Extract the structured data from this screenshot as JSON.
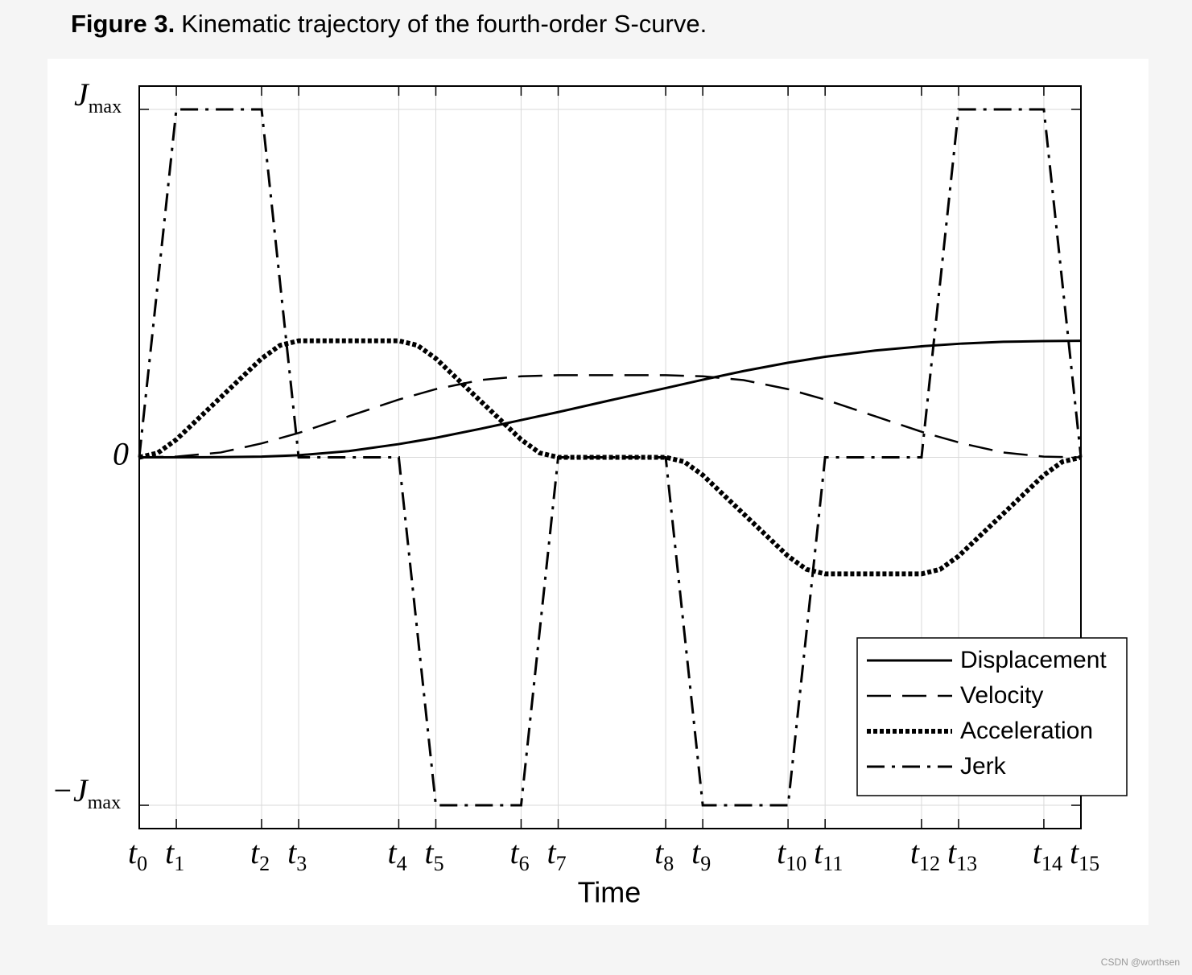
{
  "caption": {
    "label": "Figure 3.",
    "text": "Kinematic trajectory of the fourth-order S-curve."
  },
  "watermark": "CSDN @worthsen",
  "chart_data": {
    "type": "line",
    "xlabel": "Time",
    "grid": true,
    "legend": "lower right",
    "xlim": [
      0,
      25.4
    ],
    "ylim": [
      -1.067,
      1.067
    ],
    "xticks": [
      {
        "value": 0,
        "label": "t0"
      },
      {
        "value": 1,
        "label": "t1"
      },
      {
        "value": 3.3,
        "label": "t2"
      },
      {
        "value": 4.3,
        "label": "t3"
      },
      {
        "value": 7,
        "label": "t4"
      },
      {
        "value": 8,
        "label": "t5"
      },
      {
        "value": 10.3,
        "label": "t6"
      },
      {
        "value": 11.3,
        "label": "t7"
      },
      {
        "value": 14.2,
        "label": "t8"
      },
      {
        "value": 15.2,
        "label": "t9"
      },
      {
        "value": 17.5,
        "label": "t10"
      },
      {
        "value": 18.5,
        "label": "t11"
      },
      {
        "value": 21.1,
        "label": "t12"
      },
      {
        "value": 22.1,
        "label": "t13"
      },
      {
        "value": 24.4,
        "label": "t14"
      },
      {
        "value": 25.4,
        "label": "t15"
      }
    ],
    "yticks": [
      {
        "value": 1,
        "label": "Jmax"
      },
      0,
      {
        "value": -1,
        "label": "−Jmax"
      }
    ],
    "series": [
      {
        "name": "Displacement",
        "color": "#000000",
        "dash": "solid",
        "x": [
          0,
          2.2,
          3.3,
          4.3,
          5.65,
          7,
          8,
          9.2,
          10.3,
          11.3,
          12.75,
          14.2,
          15.2,
          16.3,
          17.5,
          18.5,
          19.85,
          21.2,
          22.2,
          23.3,
          24.4,
          25.4
        ],
        "values": [
          0,
          0.0005,
          0.002,
          0.006,
          0.018,
          0.038,
          0.056,
          0.082,
          0.107,
          0.13,
          0.165,
          0.199,
          0.223,
          0.248,
          0.272,
          0.289,
          0.307,
          0.32,
          0.327,
          0.332,
          0.334,
          0.335
        ]
      },
      {
        "name": "Velocity",
        "color": "#000000",
        "dash": "dashed",
        "x": [
          0,
          1,
          2.2,
          3.3,
          4.3,
          5.65,
          7,
          8,
          9.2,
          10.3,
          11.3,
          14.2,
          15.2,
          16.3,
          17.5,
          18.5,
          19.85,
          21.2,
          22.2,
          23.3,
          24.4,
          25.4
        ],
        "values": [
          0,
          0.002,
          0.014,
          0.04,
          0.07,
          0.118,
          0.166,
          0.196,
          0.222,
          0.233,
          0.236,
          0.236,
          0.233,
          0.222,
          0.196,
          0.166,
          0.118,
          0.07,
          0.04,
          0.014,
          0.002,
          0
        ]
      },
      {
        "name": "Acceleration",
        "color": "#000000",
        "dash": "dotted",
        "x": [
          0,
          0.5,
          1,
          3.3,
          3.8,
          4.3,
          7,
          7.5,
          8,
          10.3,
          10.8,
          11.3,
          14.2,
          14.7,
          15.2,
          17.5,
          18,
          18.5,
          21.1,
          21.6,
          22.1,
          24.4,
          24.9,
          25.4
        ],
        "values": [
          0,
          0.0127,
          0.051,
          0.284,
          0.322,
          0.335,
          0.335,
          0.322,
          0.284,
          0.051,
          0.0127,
          0,
          0,
          -0.0127,
          -0.051,
          -0.284,
          -0.322,
          -0.335,
          -0.335,
          -0.322,
          -0.284,
          -0.051,
          -0.0127,
          0
        ]
      },
      {
        "name": "Jerk",
        "color": "#000000",
        "dash": "dashdot",
        "x": [
          0,
          1,
          3.3,
          4.3,
          7,
          8,
          10.3,
          11.3,
          14.2,
          15.2,
          17.5,
          18.5,
          21.1,
          22.1,
          24.4,
          25.4
        ],
        "values": [
          0,
          1,
          1,
          0,
          0,
          -1,
          -1,
          0,
          0,
          -1,
          -1,
          0,
          0,
          1,
          1,
          0
        ]
      }
    ]
  }
}
